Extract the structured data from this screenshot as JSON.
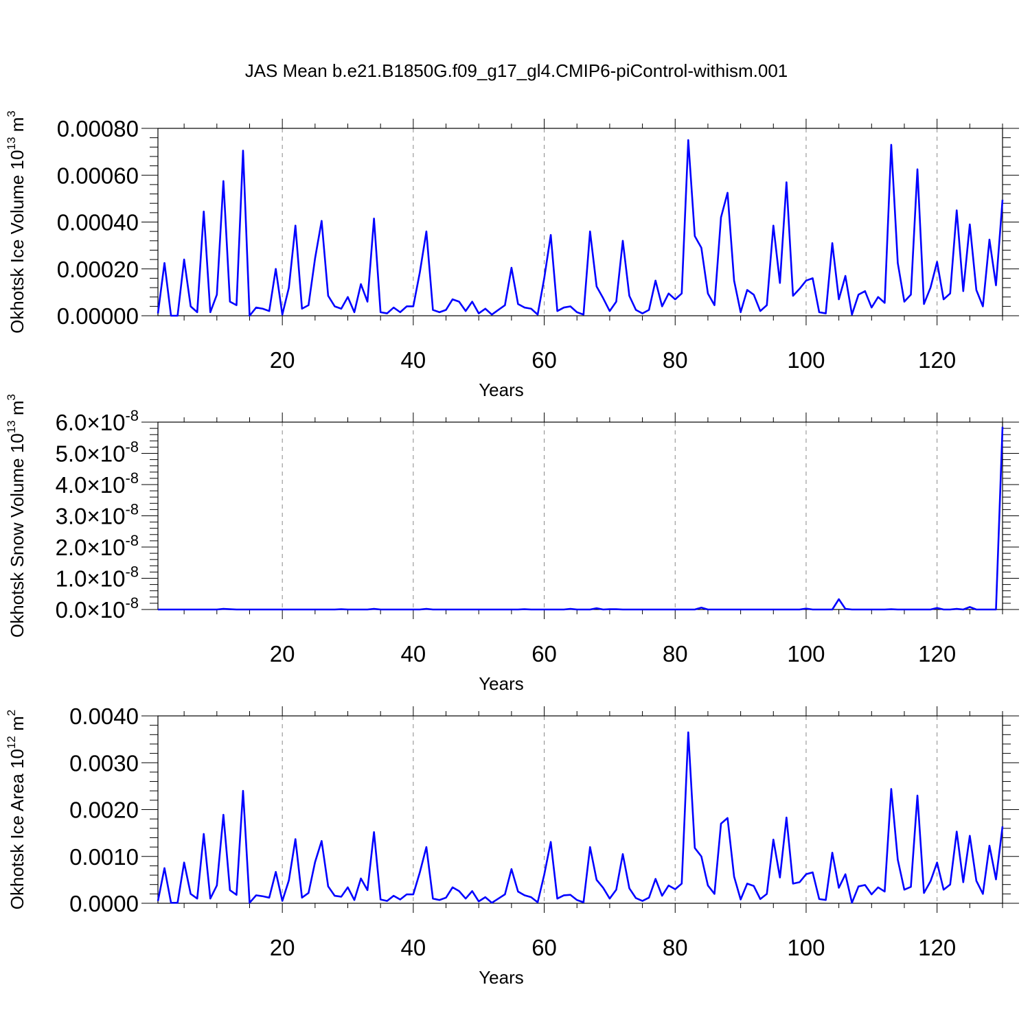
{
  "title": "JAS Mean b.e21.B1850G.f09_g17_gl4.CMIP6-piControl-withism.001",
  "line_color": "#0000ff",
  "chart_data": [
    {
      "type": "line",
      "title": "",
      "xlabel": "Years",
      "ylabel_main": "Okhotsk Ice Volume 10",
      "ylabel_sup1": "13",
      "ylabel_unit": " m",
      "ylabel_sup2": "3",
      "xlim": [
        1,
        130
      ],
      "ylim": [
        0,
        0.0008
      ],
      "xticks": [
        20,
        40,
        60,
        80,
        100,
        120
      ],
      "xtick_labels": [
        "20",
        "40",
        "60",
        "80",
        "100",
        "120"
      ],
      "yticks": [
        0,
        0.0002,
        0.0004,
        0.0006,
        0.0008
      ],
      "ytick_labels": [
        "0.00000",
        "0.00020",
        "0.00040",
        "0.00060",
        "0.00080"
      ],
      "ytick_exp": [
        "",
        "",
        "",
        "",
        ""
      ],
      "grid": "vertical dashed at x ticks",
      "x": [
        1,
        2,
        3,
        4,
        5,
        6,
        7,
        8,
        9,
        10,
        11,
        12,
        13,
        14,
        15,
        16,
        17,
        18,
        19,
        20,
        21,
        22,
        23,
        24,
        25,
        26,
        27,
        28,
        29,
        30,
        31,
        32,
        33,
        34,
        35,
        36,
        37,
        38,
        39,
        40,
        41,
        42,
        43,
        44,
        45,
        46,
        47,
        48,
        49,
        50,
        51,
        52,
        53,
        54,
        55,
        56,
        57,
        58,
        59,
        60,
        61,
        62,
        63,
        64,
        65,
        66,
        67,
        68,
        69,
        70,
        71,
        72,
        73,
        74,
        75,
        76,
        77,
        78,
        79,
        80,
        81,
        82,
        83,
        84,
        85,
        86,
        87,
        88,
        89,
        90,
        91,
        92,
        93,
        94,
        95,
        96,
        97,
        98,
        99,
        100,
        101,
        102,
        103,
        104,
        105,
        106,
        107,
        108,
        109,
        110,
        111,
        112,
        113,
        114,
        115,
        116,
        117,
        118,
        119,
        120,
        121,
        122,
        123,
        124,
        125,
        126,
        127,
        128,
        129,
        130
      ],
      "series": [
        {
          "values": [
            1e-05,
            0.000225,
            0,
            0,
            0.00024,
            4e-05,
            1.5e-05,
            0.000445,
            1.5e-05,
            9e-05,
            0.000575,
            6e-05,
            4.5e-05,
            0.000705,
            0,
            3.5e-05,
            3e-05,
            2e-05,
            0.0002,
            5e-06,
            0.00012,
            0.000385,
            3e-05,
            4.5e-05,
            0.000245,
            0.000405,
            8.5e-05,
            4e-05,
            3e-05,
            8e-05,
            1.5e-05,
            0.000135,
            6e-05,
            0.000415,
            1.5e-05,
            1e-05,
            3.5e-05,
            1.5e-05,
            4e-05,
            4e-05,
            0.000185,
            0.00036,
            2.5e-05,
            1.5e-05,
            2.5e-05,
            7e-05,
            6e-05,
            2e-05,
            6e-05,
            1e-05,
            3e-05,
            5e-06,
            2.5e-05,
            4.5e-05,
            0.000205,
            5e-05,
            3.5e-05,
            3e-05,
            5e-06,
            0.00016,
            0.000345,
            2e-05,
            3.5e-05,
            4e-05,
            1.5e-05,
            5e-06,
            0.00036,
            0.000125,
            7.5e-05,
            2e-05,
            6e-05,
            0.00032,
            8.5e-05,
            2.5e-05,
            1e-05,
            2.5e-05,
            0.00015,
            4e-05,
            9.5e-05,
            7e-05,
            9.5e-05,
            0.00075,
            0.00034,
            0.00029,
            9.5e-05,
            4.5e-05,
            0.00042,
            0.000525,
            0.00015,
            1.5e-05,
            0.00011,
            9e-05,
            2e-05,
            4.5e-05,
            0.000385,
            0.00014,
            0.00057,
            8.5e-05,
            0.000115,
            0.00015,
            0.00016,
            1.5e-05,
            1e-05,
            0.00031,
            7e-05,
            0.00017,
            5e-06,
            9e-05,
            0.000105,
            3.5e-05,
            8e-05,
            5.5e-05,
            0.00073,
            0.000225,
            6e-05,
            9e-05,
            0.000625,
            5e-05,
            0.00012,
            0.00023,
            7e-05,
            9.5e-05,
            0.00045,
            0.000105,
            0.00039,
            0.00011,
            4e-05,
            0.000325,
            0.00013,
            0.000495
          ]
        }
      ]
    },
    {
      "type": "line",
      "title": "",
      "xlabel": "Years",
      "ylabel_main": "Okhotsk Snow Volume 10",
      "ylabel_sup1": "13",
      "ylabel_unit": " m",
      "ylabel_sup2": "3",
      "xlim": [
        1,
        130
      ],
      "ylim": [
        0,
        6e-08
      ],
      "xticks": [
        20,
        40,
        60,
        80,
        100,
        120
      ],
      "xtick_labels": [
        "20",
        "40",
        "60",
        "80",
        "100",
        "120"
      ],
      "yticks": [
        0,
        1e-08,
        2e-08,
        3e-08,
        4e-08,
        5e-08,
        6e-08
      ],
      "ytick_labels": [
        "0.0×10",
        "1.0×10",
        "2.0×10",
        "3.0×10",
        "4.0×10",
        "5.0×10",
        "6.0×10"
      ],
      "ytick_exp": [
        "-8",
        "-8",
        "-8",
        "-8",
        "-8",
        "-8",
        "-8"
      ],
      "grid": "vertical dashed at x ticks",
      "x": [
        1,
        2,
        3,
        4,
        5,
        6,
        7,
        8,
        9,
        10,
        11,
        12,
        13,
        14,
        15,
        16,
        17,
        18,
        19,
        20,
        21,
        22,
        23,
        24,
        25,
        26,
        27,
        28,
        29,
        30,
        31,
        32,
        33,
        34,
        35,
        36,
        37,
        38,
        39,
        40,
        41,
        42,
        43,
        44,
        45,
        46,
        47,
        48,
        49,
        50,
        51,
        52,
        53,
        54,
        55,
        56,
        57,
        58,
        59,
        60,
        61,
        62,
        63,
        64,
        65,
        66,
        67,
        68,
        69,
        70,
        71,
        72,
        73,
        74,
        75,
        76,
        77,
        78,
        79,
        80,
        81,
        82,
        83,
        84,
        85,
        86,
        87,
        88,
        89,
        90,
        91,
        92,
        93,
        94,
        95,
        96,
        97,
        98,
        99,
        100,
        101,
        102,
        103,
        104,
        105,
        106,
        107,
        108,
        109,
        110,
        111,
        112,
        113,
        114,
        115,
        116,
        117,
        118,
        119,
        120,
        121,
        122,
        123,
        124,
        125,
        126,
        127,
        128,
        129,
        130
      ],
      "series": [
        {
          "values": [
            0,
            0,
            0,
            0,
            0,
            0,
            0,
            0,
            0,
            0,
            2e-10,
            1e-10,
            0,
            0,
            0,
            0,
            0,
            0,
            0,
            0,
            0,
            0,
            0,
            0,
            0,
            0,
            0,
            0,
            1e-10,
            0,
            0,
            0,
            0,
            2e-10,
            0,
            0,
            0,
            0,
            0,
            0,
            0,
            2e-10,
            0,
            0,
            0,
            0,
            0,
            0,
            0,
            0,
            0,
            0,
            0,
            0,
            0,
            0,
            1e-10,
            0,
            0,
            0,
            0,
            0,
            0,
            2e-10,
            0,
            0,
            0,
            4e-10,
            0,
            1e-10,
            1e-10,
            0,
            0,
            0,
            0,
            0,
            0,
            0,
            0,
            0,
            0,
            0,
            0,
            6e-10,
            0,
            0,
            0,
            0,
            0,
            0,
            0,
            0,
            0,
            0,
            0,
            0,
            0,
            0,
            0,
            3e-10,
            0,
            0,
            0,
            0,
            3.3e-09,
            2e-10,
            0,
            0,
            0,
            0,
            0,
            0,
            1e-10,
            0,
            0,
            0,
            0,
            0,
            0,
            5e-10,
            0,
            0,
            2e-10,
            0,
            8e-10,
            0,
            0,
            0,
            0,
            5.85e-08
          ]
        }
      ]
    },
    {
      "type": "line",
      "title": "",
      "xlabel": "Years",
      "ylabel_main": "Okhotsk Ice Area 10",
      "ylabel_sup1": "12",
      "ylabel_unit": " m",
      "ylabel_sup2": "2",
      "xlim": [
        1,
        130
      ],
      "ylim": [
        0,
        0.004
      ],
      "xticks": [
        20,
        40,
        60,
        80,
        100,
        120
      ],
      "xtick_labels": [
        "20",
        "40",
        "60",
        "80",
        "100",
        "120"
      ],
      "yticks": [
        0,
        0.001,
        0.002,
        0.003,
        0.004
      ],
      "ytick_labels": [
        "0.0000",
        "0.0010",
        "0.0020",
        "0.0030",
        "0.0040"
      ],
      "ytick_exp": [
        "",
        "",
        "",
        "",
        ""
      ],
      "grid": "vertical dashed at x ticks",
      "x": [
        1,
        2,
        3,
        4,
        5,
        6,
        7,
        8,
        9,
        10,
        11,
        12,
        13,
        14,
        15,
        16,
        17,
        18,
        19,
        20,
        21,
        22,
        23,
        24,
        25,
        26,
        27,
        28,
        29,
        30,
        31,
        32,
        33,
        34,
        35,
        36,
        37,
        38,
        39,
        40,
        41,
        42,
        43,
        44,
        45,
        46,
        47,
        48,
        49,
        50,
        51,
        52,
        53,
        54,
        55,
        56,
        57,
        58,
        59,
        60,
        61,
        62,
        63,
        64,
        65,
        66,
        67,
        68,
        69,
        70,
        71,
        72,
        73,
        74,
        75,
        76,
        77,
        78,
        79,
        80,
        81,
        82,
        83,
        84,
        85,
        86,
        87,
        88,
        89,
        90,
        91,
        92,
        93,
        94,
        95,
        96,
        97,
        98,
        99,
        100,
        101,
        102,
        103,
        104,
        105,
        106,
        107,
        108,
        109,
        110,
        111,
        112,
        113,
        114,
        115,
        116,
        117,
        118,
        119,
        120,
        121,
        122,
        123,
        124,
        125,
        126,
        127,
        128,
        129,
        130
      ],
      "series": [
        {
          "values": [
            5e-05,
            0.00075,
            1e-05,
            1e-05,
            0.00087,
            0.0002,
            0.0001,
            0.00148,
            0.0001,
            0.00038,
            0.00189,
            0.00028,
            0.00018,
            0.0024,
            1e-05,
            0.00017,
            0.00015,
            0.00012,
            0.00067,
            5e-05,
            0.00049,
            0.00137,
            0.00012,
            0.00022,
            0.00088,
            0.00133,
            0.00036,
            0.00016,
            0.00014,
            0.00034,
            7e-05,
            0.00053,
            0.00028,
            0.00152,
            8e-05,
            5e-05,
            0.00016,
            8e-05,
            0.00019,
            0.00019,
            0.00066,
            0.0012,
            0.0001,
            7e-05,
            0.00012,
            0.00034,
            0.00026,
            0.0001,
            0.00026,
            4e-05,
            0.00013,
            1e-05,
            0.0001,
            0.00019,
            0.00073,
            0.00025,
            0.00017,
            0.00013,
            2e-05,
            0.00061,
            0.00131,
            0.0001,
            0.00017,
            0.00018,
            7e-05,
            2e-05,
            0.0012,
            0.0005,
            0.00033,
            0.0001,
            0.00029,
            0.00105,
            0.00032,
            0.00011,
            5e-05,
            0.00012,
            0.00052,
            0.00016,
            0.00038,
            0.0003,
            0.00042,
            0.00365,
            0.00118,
            0.001,
            0.00038,
            0.0002,
            0.0017,
            0.00182,
            0.00057,
            8e-05,
            0.00042,
            0.00037,
            9e-05,
            0.0002,
            0.00136,
            0.00055,
            0.00183,
            0.00042,
            0.00045,
            0.00062,
            0.00066,
            9e-05,
            7e-05,
            0.00108,
            0.00033,
            0.00062,
            1e-05,
            0.00036,
            0.00039,
            0.00019,
            0.00034,
            0.00025,
            0.00244,
            0.00093,
            0.00029,
            0.00035,
            0.0023,
            0.00022,
            0.00047,
            0.00087,
            0.00029,
            0.0004,
            0.00153,
            0.00045,
            0.00144,
            0.00048,
            0.0002,
            0.00123,
            0.00051,
            0.00164
          ]
        }
      ]
    }
  ]
}
